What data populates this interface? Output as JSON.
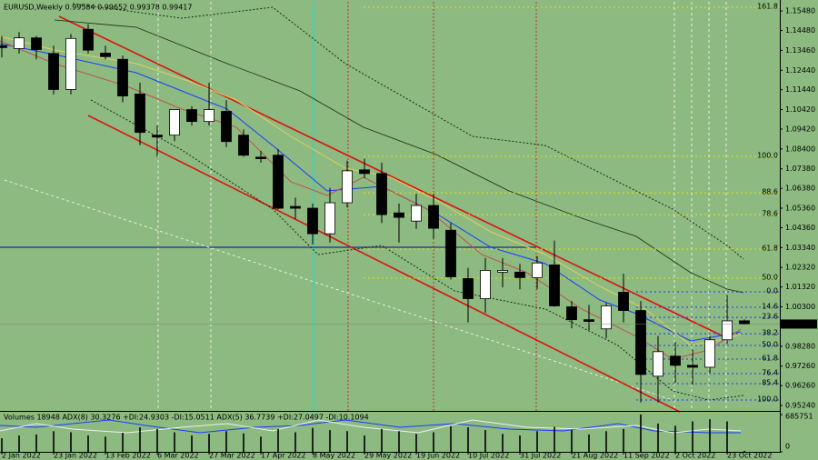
{
  "chart_data": {
    "type": "candlestick",
    "title": "EURUSD,Weekly  0.99584 0.99652 0.99378 0.99417",
    "categories": [
      "2 Jan 2022",
      null,
      null,
      "23 Jan 2022",
      null,
      null,
      "13 Feb 2022",
      null,
      null,
      "6 Mar 2022",
      null,
      null,
      "27 Mar 2022",
      null,
      null,
      "17 Apr 2022",
      null,
      null,
      "8 May 2022",
      null,
      null,
      "29 May 2022",
      null,
      null,
      "19 Jun 2022",
      null,
      null,
      "10 Jul 2022",
      null,
      null,
      "31 Jul 2022",
      null,
      null,
      "21 Aug 2022",
      null,
      null,
      "11 Sep 2022",
      null,
      null,
      "2 Oct 2022",
      null,
      null,
      "23 Oct 2022",
      null
    ],
    "open": [
      1.137,
      1.1355,
      1.141,
      1.133,
      1.1145,
      1.1454,
      1.1332,
      1.13,
      1.1122,
      1.0911,
      1.0911,
      1.1042,
      1.0981,
      1.1033,
      1.0911,
      1.0798,
      1.0808,
      1.0545,
      1.0536,
      1.0405,
      1.0564,
      1.0733,
      1.0714,
      1.0512,
      1.047,
      1.055,
      1.0423,
      1.0175,
      1.0072,
      1.0208,
      1.0208,
      1.018,
      1.0245,
      1.003,
      0.9964,
      0.9917,
      1.0105,
      1.0011,
      0.9674,
      0.9777,
      0.973,
      0.972,
      0.9861,
      0.99584
    ],
    "high": [
      1.142,
      1.144,
      1.142,
      1.137,
      1.143,
      1.148,
      1.137,
      1.132,
      1.118,
      1.096,
      1.104,
      1.106,
      1.118,
      1.109,
      1.094,
      1.083,
      1.084,
      1.059,
      1.056,
      1.064,
      1.078,
      1.079,
      1.077,
      1.056,
      1.061,
      1.061,
      1.046,
      1.023,
      1.028,
      1.028,
      1.025,
      1.029,
      1.037,
      1.006,
      1.004,
      1.005,
      1.02,
      1.006,
      0.988,
      0.985,
      0.981,
      0.988,
      1.009,
      0.99652
    ],
    "low": [
      1.131,
      1.133,
      1.13,
      1.112,
      1.112,
      1.133,
      1.13,
      1.108,
      1.086,
      1.08,
      1.088,
      1.096,
      1.096,
      1.085,
      1.08,
      1.077,
      1.053,
      1.048,
      1.035,
      1.036,
      1.054,
      1.069,
      1.046,
      1.036,
      1.043,
      1.038,
      1.017,
      0.995,
      1.0,
      1.013,
      1.012,
      1.012,
      1.003,
      0.992,
      0.991,
      0.987,
      0.995,
      0.954,
      0.954,
      0.964,
      0.963,
      0.969,
      0.984,
      0.99378
    ],
    "close": [
      1.136,
      1.141,
      1.135,
      1.1145,
      1.1407,
      1.1347,
      1.1314,
      1.1112,
      1.0925,
      1.0901,
      1.1042,
      1.0981,
      1.1042,
      1.0878,
      1.0808,
      1.079,
      1.0536,
      1.0536,
      1.0405,
      1.0564,
      1.0728,
      1.0714,
      1.0503,
      1.0489,
      1.055,
      1.0433,
      1.0184,
      1.0072,
      1.0217,
      1.0217,
      1.018,
      1.0255,
      1.0035,
      0.9964,
      0.9955,
      1.0035,
      1.0011,
      0.9683,
      0.98,
      0.973,
      0.972,
      0.9861,
      0.9958,
      0.99417
    ],
    "ylim": [
      0.9496,
      1.1595
    ],
    "yticks": [
      {
        "value": 1.1548,
        "label": "1.15480"
      },
      {
        "value": 1.1448,
        "label": "1.14480"
      },
      {
        "value": 1.1346,
        "label": "1.13460"
      },
      {
        "value": 1.1244,
        "label": "1.12440"
      },
      {
        "value": 1.1144,
        "label": "1.11440"
      },
      {
        "value": 1.1042,
        "label": "1.10420"
      },
      {
        "value": 1.0942,
        "label": "1.09420"
      },
      {
        "value": 1.084,
        "label": "1.08400"
      },
      {
        "value": 1.0738,
        "label": "1.07380"
      },
      {
        "value": 1.0638,
        "label": "1.06380"
      },
      {
        "value": 1.0536,
        "label": "1.05360"
      },
      {
        "value": 1.0436,
        "label": "1.04360"
      },
      {
        "value": 1.0334,
        "label": "1.03340"
      },
      {
        "value": 1.0232,
        "label": "1.02320"
      },
      {
        "value": 1.0132,
        "label": "1.01320"
      },
      {
        "value": 1.003,
        "label": "1.00300"
      },
      {
        "value": 0.9828,
        "label": "0.98280"
      },
      {
        "value": 0.9726,
        "label": "0.97260"
      },
      {
        "value": 0.9626,
        "label": "0.96260"
      },
      {
        "value": 0.9524,
        "label": "0.95240"
      }
    ],
    "fib_upper": {
      "color": "#e6e600",
      "levels": [
        {
          "value": 1.1567,
          "label": "161.8"
        },
        {
          "value": 1.0802,
          "label": "100.0"
        },
        {
          "value": 1.0615,
          "label": "88.6"
        },
        {
          "value": 1.0503,
          "label": "78.6"
        },
        {
          "value": 1.0326,
          "label": "61.8"
        },
        {
          "value": 1.0177,
          "label": "50.0"
        }
      ]
    },
    "fib_lower": {
      "color": "#1a3cff",
      "levels": [
        {
          "value": 1.0107,
          "label": "0.0"
        },
        {
          "value": 1.0028,
          "label": "14.6"
        },
        {
          "value": 0.9976,
          "label": "23.6"
        },
        {
          "value": 0.9892,
          "label": "38.2"
        },
        {
          "value": 0.9832,
          "label": "50.0"
        },
        {
          "value": 0.9762,
          "label": "61.8"
        },
        {
          "value": 0.9687,
          "label": "76.4"
        },
        {
          "value": 0.9636,
          "label": "85.4"
        },
        {
          "value": 0.9552,
          "label": "100.0"
        }
      ]
    },
    "volume": {
      "header": "Volumes 18948  ADX(8) 30.3276 +DI:24.9303 -DI:15.0511  ADX(5) 36.7739 +DI:27.0497 -DI:10.1094",
      "values": [
        250000,
        300000,
        320000,
        380000,
        360000,
        300000,
        280000,
        350000,
        450000,
        420000,
        360000,
        300000,
        330000,
        380000,
        340000,
        280000,
        420000,
        360000,
        440000,
        400000,
        380000,
        300000,
        420000,
        380000,
        330000,
        360000,
        470000,
        450000,
        400000,
        330000,
        300000,
        380000,
        460000,
        400000,
        320000,
        380000,
        420000,
        685751,
        520000,
        480000,
        560000,
        600000,
        560000,
        18948
      ],
      "ylim": [
        0,
        685751
      ],
      "yticks": [
        0,
        685751
      ]
    }
  }
}
